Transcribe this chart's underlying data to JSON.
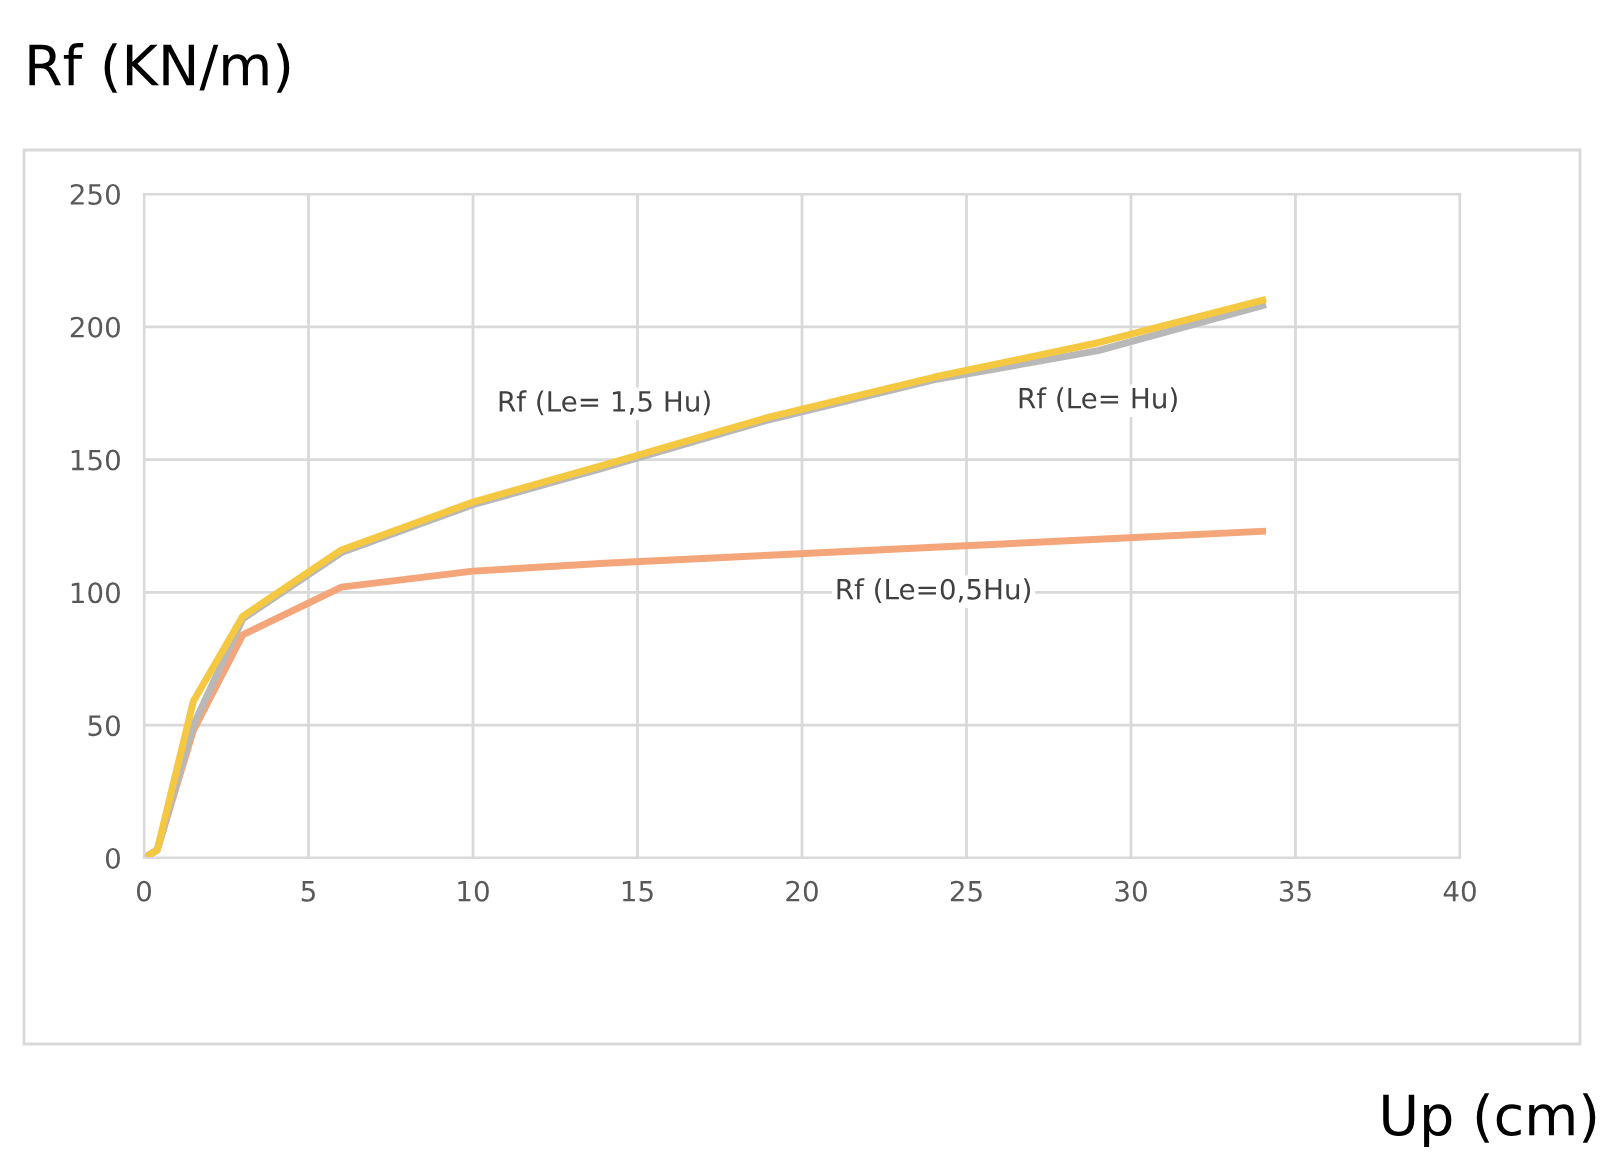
{
  "chart_data": {
    "type": "line",
    "title": "Rf (KN/m)",
    "xlabel": "Up (cm)",
    "xlim": [
      0,
      40
    ],
    "xticks": [
      0,
      5,
      10,
      15,
      20,
      25,
      30,
      35,
      40
    ],
    "ylim": [
      0,
      250
    ],
    "yticks": [
      0,
      50,
      100,
      150,
      200,
      250
    ],
    "grid": true,
    "legend": false,
    "marker": "none",
    "line_style": "solid",
    "series": [
      {
        "name": "Rf (Le= 1,5 Hu)",
        "color": "#f5c842",
        "x": [
          0,
          0.4,
          1.5,
          3,
          6,
          10,
          14,
          19,
          24,
          29,
          34
        ],
        "values": [
          0,
          3,
          59,
          91,
          116,
          134,
          148,
          166,
          181,
          194,
          210
        ]
      },
      {
        "name": "Rf (Le= Hu)",
        "color": "#b8b8b8",
        "x": [
          0,
          0.4,
          1.5,
          3,
          6,
          10,
          14,
          19,
          24,
          29,
          34
        ],
        "values": [
          0,
          3,
          50,
          90,
          115,
          133,
          147,
          165,
          180,
          191,
          208
        ]
      },
      {
        "name": "Rf (Le=0,5Hu)",
        "color": "#f4a57a",
        "x": [
          0,
          0.4,
          1.5,
          3,
          6,
          10,
          14,
          19,
          24,
          29,
          34
        ],
        "values": [
          0,
          3,
          48,
          84,
          102,
          108,
          111,
          114,
          117,
          120,
          123
        ]
      }
    ]
  }
}
